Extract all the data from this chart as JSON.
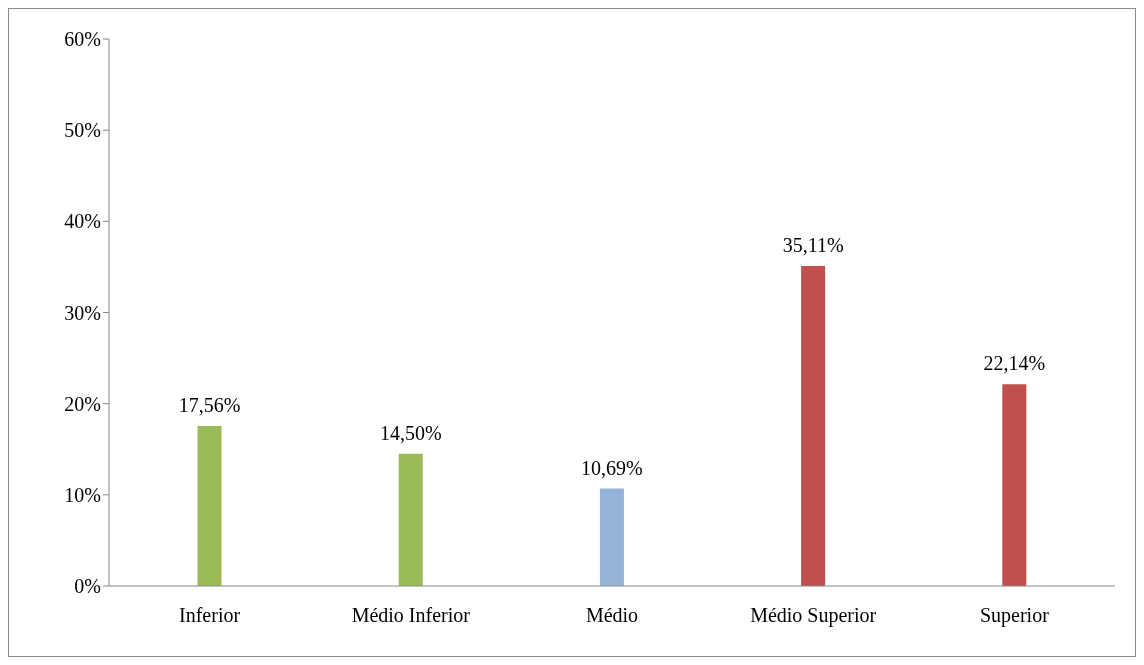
{
  "chart_data": {
    "type": "bar",
    "categories": [
      "Inferior",
      "Médio Inferior",
      "Médio",
      "Médio Superior",
      "Superior"
    ],
    "values": [
      17.56,
      14.5,
      10.69,
      35.11,
      22.14
    ],
    "colors": [
      "#9bbb59",
      "#9bbb59",
      "#95b3d7",
      "#c0504d",
      "#c0504d"
    ],
    "value_labels": [
      "17,56%",
      "14,50%",
      "10,69%",
      "35,11%",
      "22,14%"
    ],
    "ylim": [
      0,
      60
    ],
    "yticks": [
      {
        "value": 0,
        "label": "0%"
      },
      {
        "value": 10,
        "label": "10%"
      },
      {
        "value": 20,
        "label": "20%"
      },
      {
        "value": 30,
        "label": "30%"
      },
      {
        "value": 40,
        "label": "40%"
      },
      {
        "value": 50,
        "label": "50%"
      },
      {
        "value": 60,
        "label": "60%"
      }
    ],
    "grid": false,
    "legend": false
  }
}
